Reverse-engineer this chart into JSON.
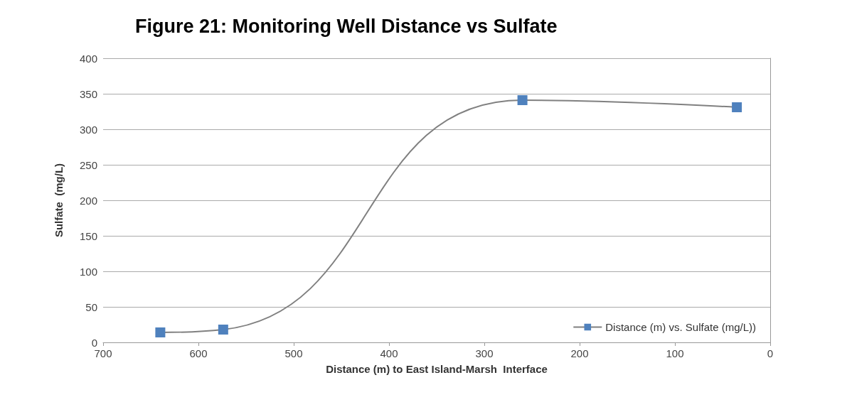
{
  "chart_data": {
    "type": "line",
    "title": "Figure 21: Monitoring Well Distance vs Sulfate",
    "xlabel": "Distance (m) to East Island-Marsh  Interface",
    "ylabel": "Sulfate  (mg/L)",
    "x": [
      640,
      574,
      260,
      35
    ],
    "series": [
      {
        "name": "Distance (m) vs. Sulfate (mg/L))",
        "color": "#4f81bd",
        "values": [
          14,
          18,
          341,
          331
        ]
      }
    ],
    "xlim": [
      700,
      0
    ],
    "xticks": [
      700,
      600,
      500,
      400,
      300,
      200,
      100,
      0
    ],
    "ylim": [
      0,
      400
    ],
    "yticks": [
      0,
      50,
      100,
      150,
      200,
      250,
      300,
      350,
      400
    ],
    "grid": "y",
    "legend": "bottom right",
    "marker": "square",
    "line_style": "solid"
  }
}
